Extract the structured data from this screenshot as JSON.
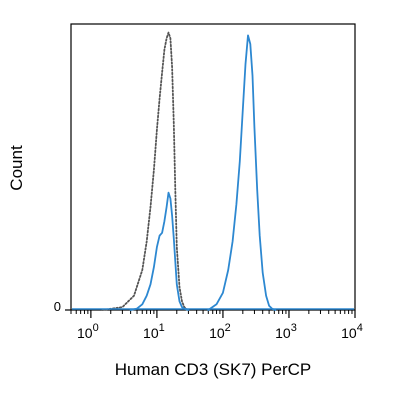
{
  "chart_data": {
    "type": "line",
    "title": "",
    "xlabel": "Human CD3 (SK7) PerCP",
    "ylabel": "Count",
    "x_scale": "log",
    "xlim": [
      0.5,
      10000
    ],
    "ylim": [
      0,
      100
    ],
    "grid": false,
    "x_ticks": [
      {
        "value": 1,
        "base": "10",
        "exp": "0"
      },
      {
        "value": 10,
        "base": "10",
        "exp": "1"
      },
      {
        "value": 100,
        "base": "10",
        "exp": "2"
      },
      {
        "value": 1000,
        "base": "10",
        "exp": "3"
      },
      {
        "value": 10000,
        "base": "10",
        "exp": "4"
      }
    ],
    "y_ticks": [
      {
        "value": 0,
        "label": "0"
      }
    ],
    "series": [
      {
        "style": "dotted",
        "color": "#555555",
        "x": [
          1.5,
          3,
          4.5,
          6,
          7,
          8,
          9,
          10,
          11,
          12,
          13,
          14,
          15,
          16,
          17,
          18,
          19,
          20,
          22,
          24,
          26,
          28,
          30
        ],
        "y": [
          0,
          1,
          5,
          14,
          24,
          36,
          49,
          63,
          74,
          83,
          91,
          95,
          97,
          95,
          85,
          65,
          42,
          22,
          8,
          3,
          1,
          0.3,
          0
        ]
      },
      {
        "style": "solid",
        "color": "#2d88d1",
        "x": [
          4,
          5,
          6,
          7,
          8,
          9,
          10,
          11,
          12,
          13,
          14,
          15,
          16,
          17,
          18,
          19,
          20,
          22,
          24,
          26,
          28,
          30
        ],
        "y": [
          0,
          0.5,
          2,
          5,
          9,
          15,
          22,
          26,
          27,
          31,
          36,
          41,
          39,
          33,
          25,
          17,
          9,
          3,
          1,
          0.5,
          0.2,
          0
        ]
      },
      {
        "style": "solid",
        "color": "#2d88d1",
        "x": [
          60,
          80,
          100,
          120,
          140,
          160,
          180,
          200,
          220,
          240,
          260,
          280,
          300,
          330,
          360,
          400,
          450,
          500,
          560,
          620
        ],
        "y": [
          0,
          2,
          6,
          14,
          24,
          37,
          52,
          70,
          86,
          96,
          93,
          82,
          64,
          42,
          26,
          13,
          5,
          1.5,
          0.4,
          0
        ]
      }
    ]
  }
}
